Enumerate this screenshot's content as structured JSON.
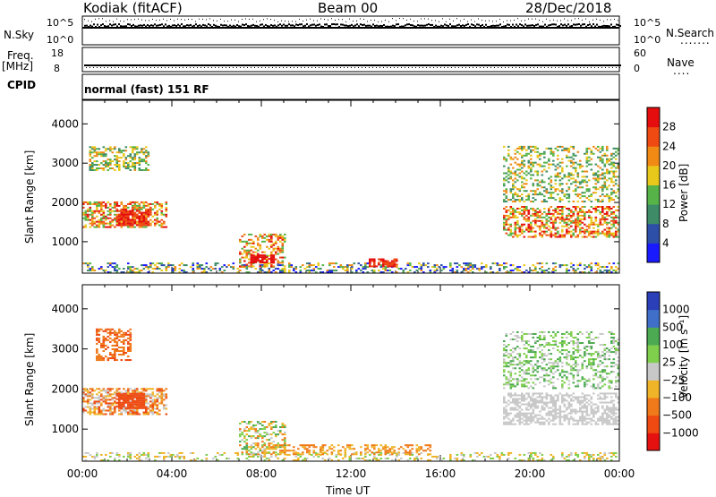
{
  "header": {
    "station": "Kodiak (fitACF)",
    "beam": "Beam 00",
    "date": "28/Dec/2018"
  },
  "status_panel": {
    "nsky_label": "N.Sky",
    "nsky_ticks": [
      "10^5",
      "10^0"
    ],
    "nsearch_label": "N.Search",
    "nsearch_ticks": [
      "10^5",
      "10^0"
    ],
    "freq_label": "Freq.",
    "freq_unit": "[MHz]",
    "freq_ticks": [
      "18",
      "8"
    ],
    "nave_label": "Nave",
    "nave_ticks": [
      "60",
      "0"
    ],
    "cpid_label": "CPID",
    "cpid_value": "normal (fast) 151 RF"
  },
  "chart_data": [
    {
      "type": "heatmap",
      "name": "power",
      "ylabel": "Slant Range [km]",
      "ylim": [
        200,
        4600
      ],
      "yticks": [
        "1000",
        "2000",
        "3000",
        "4000"
      ],
      "xlim": [
        "00:00",
        "24:00"
      ],
      "colorbar_label": "Power [dB]",
      "colorbar_ticks": [
        "4",
        "8",
        "12",
        "16",
        "20",
        "24",
        "28"
      ],
      "color_levels": [
        "#1a1aff",
        "#2d4fa8",
        "#3d8c67",
        "#56b347",
        "#e8c81a",
        "#f08a15",
        "#ee4a12",
        "#e50d0d"
      ]
    },
    {
      "type": "heatmap",
      "name": "velocity",
      "ylabel": "Slant Range [km]",
      "ylim": [
        200,
        4600
      ],
      "yticks": [
        "1000",
        "2000",
        "3000",
        "4000"
      ],
      "xlim": [
        "00:00",
        "24:00"
      ],
      "xlabel": "Time UT",
      "xticks": [
        "00:00",
        "04:00",
        "08:00",
        "12:00",
        "16:00",
        "20:00",
        "00:00"
      ],
      "colorbar_label": "Velocity [m s⁻¹]",
      "colorbar_ticks": [
        "1000",
        "500",
        "100",
        "25",
        "−25",
        "−100",
        "−500",
        "−1000"
      ],
      "color_levels": [
        "#2a3fb8",
        "#3f6fc9",
        "#4caa52",
        "#7fcf4d",
        "#c8c8c8",
        "#f0b428",
        "#f07a1a",
        "#ee4a12",
        "#e51010"
      ]
    }
  ]
}
